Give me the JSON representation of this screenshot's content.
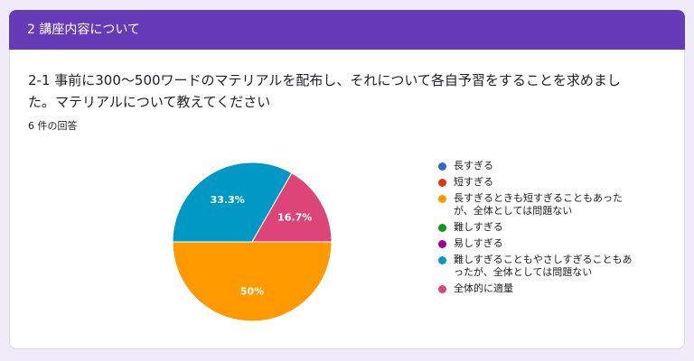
{
  "section": {
    "title": "2 講座内容について"
  },
  "question": {
    "title": "2-1 事前に300〜500ワードのマテリアルを配布し、それについて各自予習をすることを求めました。マテリアルについて教えてください",
    "response_count": "6 件の回答"
  },
  "chart_data": {
    "type": "pie",
    "categories": [
      "長すぎる",
      "短すぎる",
      "長すぎるときも短すぎることもあったが、全体としては問題ない",
      "難しすぎる",
      "易しすぎる",
      "難しすぎることもやさしすぎることもあったが、全体としては問題ない",
      "全体的に適量"
    ],
    "values": [
      0,
      0,
      50,
      0,
      0,
      33.3,
      16.7
    ],
    "data_labels": [
      "",
      "",
      "50%",
      "",
      "",
      "33.3%",
      "16.7%"
    ],
    "colors": [
      "#3366cc",
      "#dc3912",
      "#ff9900",
      "#109618",
      "#990099",
      "#0099c6",
      "#dd4477"
    ],
    "legend_position": "right"
  }
}
